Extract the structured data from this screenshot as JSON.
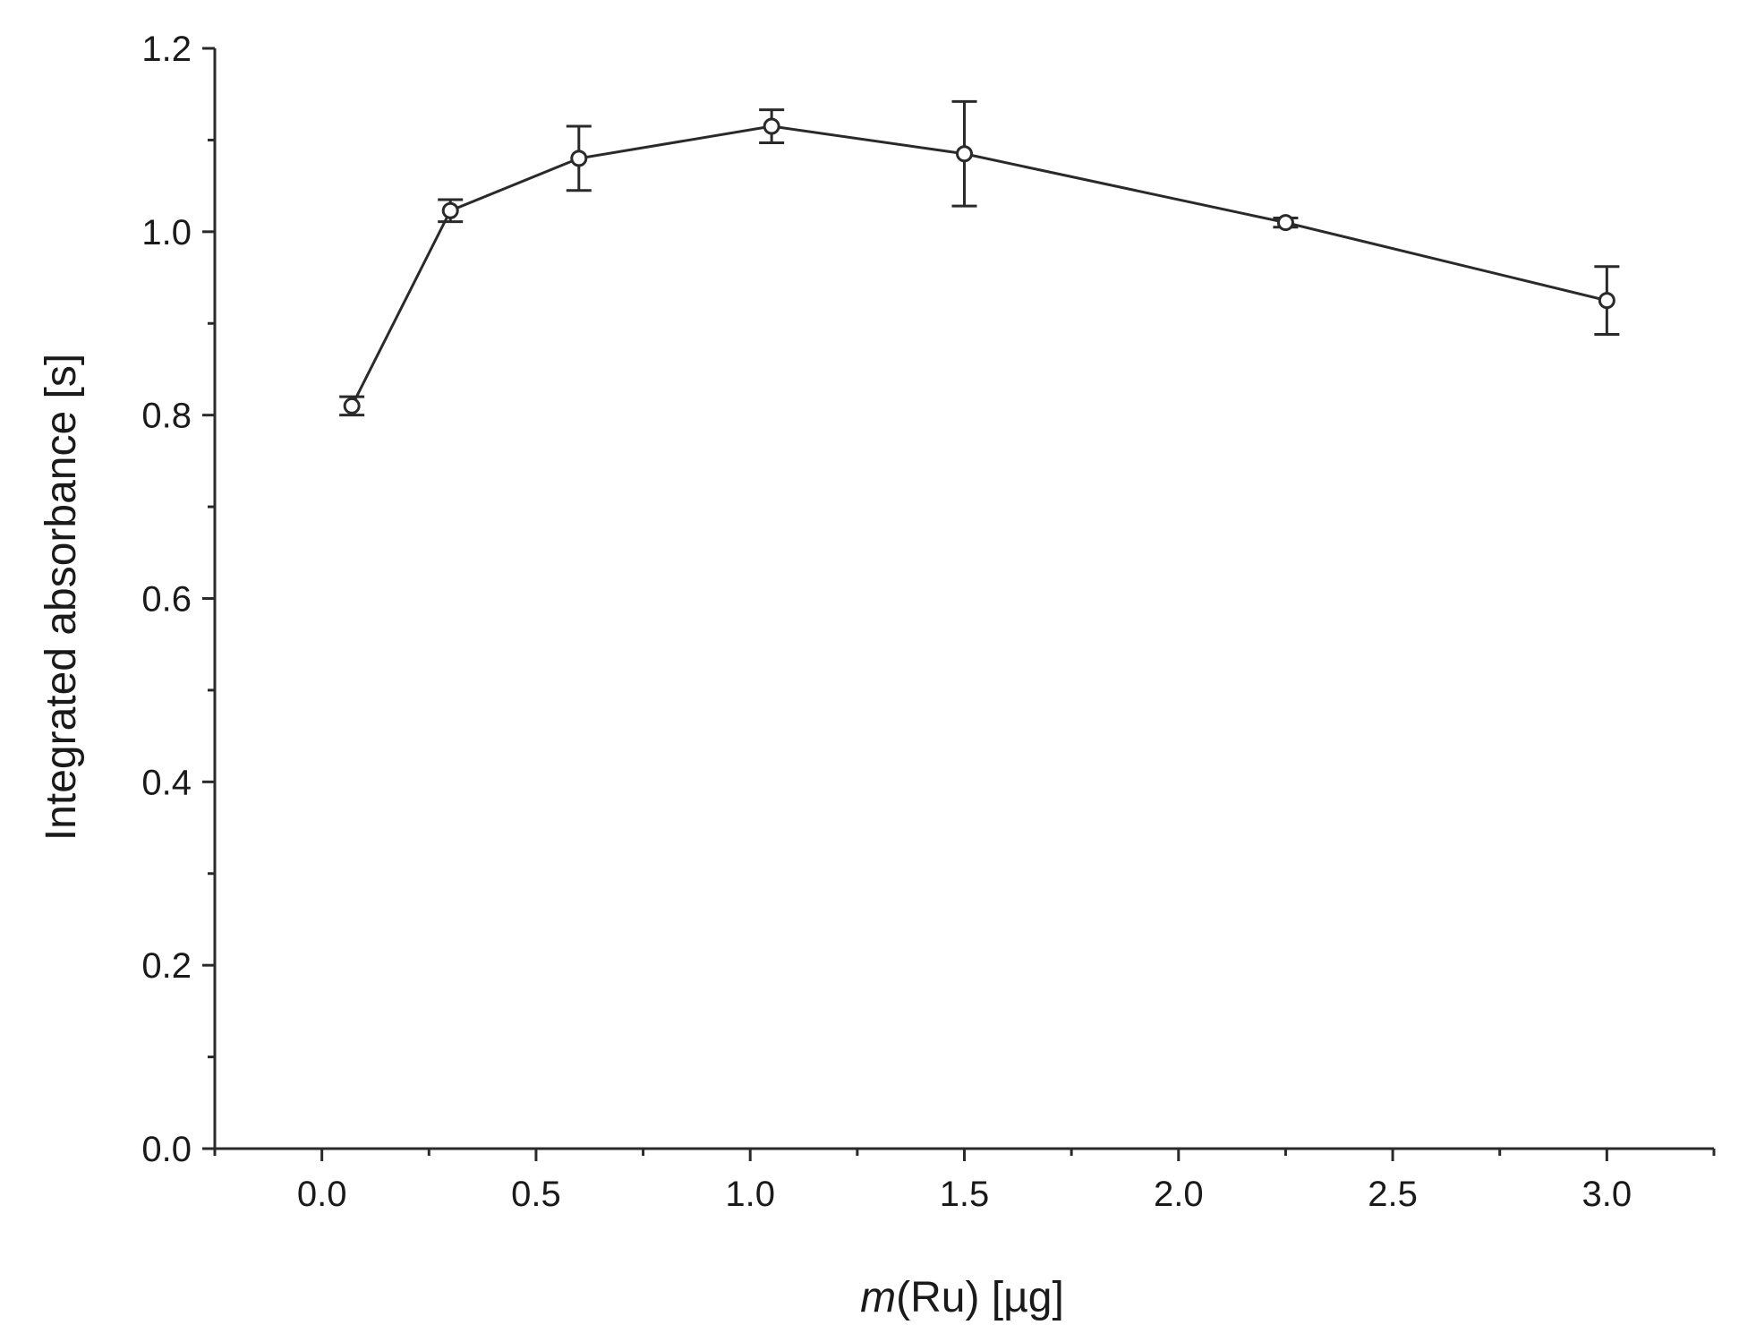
{
  "chart_data": {
    "type": "line",
    "title": "",
    "xlabel_italic": "m",
    "xlabel_rest": "(Ru) [µg]",
    "ylabel": "Integrated absorbance [s]",
    "xlim": [
      -0.25,
      3.25
    ],
    "ylim": [
      0.0,
      1.2
    ],
    "xticks": [
      0.0,
      0.5,
      1.0,
      1.5,
      2.0,
      2.5,
      3.0
    ],
    "xtick_labels": [
      "0.0",
      "0.5",
      "1.0",
      "1.5",
      "2.0",
      "2.5",
      "3.0"
    ],
    "yticks": [
      0.0,
      0.2,
      0.4,
      0.6,
      0.8,
      1.0,
      1.2
    ],
    "ytick_labels": [
      "0.0",
      "0.2",
      "0.4",
      "0.6",
      "0.8",
      "1.0",
      "1.2"
    ],
    "grid": false,
    "legend": "none",
    "series": [
      {
        "x": [
          0.07,
          0.3,
          0.6,
          1.05,
          1.5,
          2.25,
          3.0
        ],
        "y": [
          0.81,
          1.023,
          1.08,
          1.115,
          1.085,
          1.01,
          0.925
        ],
        "error": [
          0.01,
          0.012,
          0.035,
          0.018,
          0.057,
          0.005,
          0.037
        ],
        "marker": "open-circle",
        "color": "#2a2a2a"
      }
    ]
  }
}
